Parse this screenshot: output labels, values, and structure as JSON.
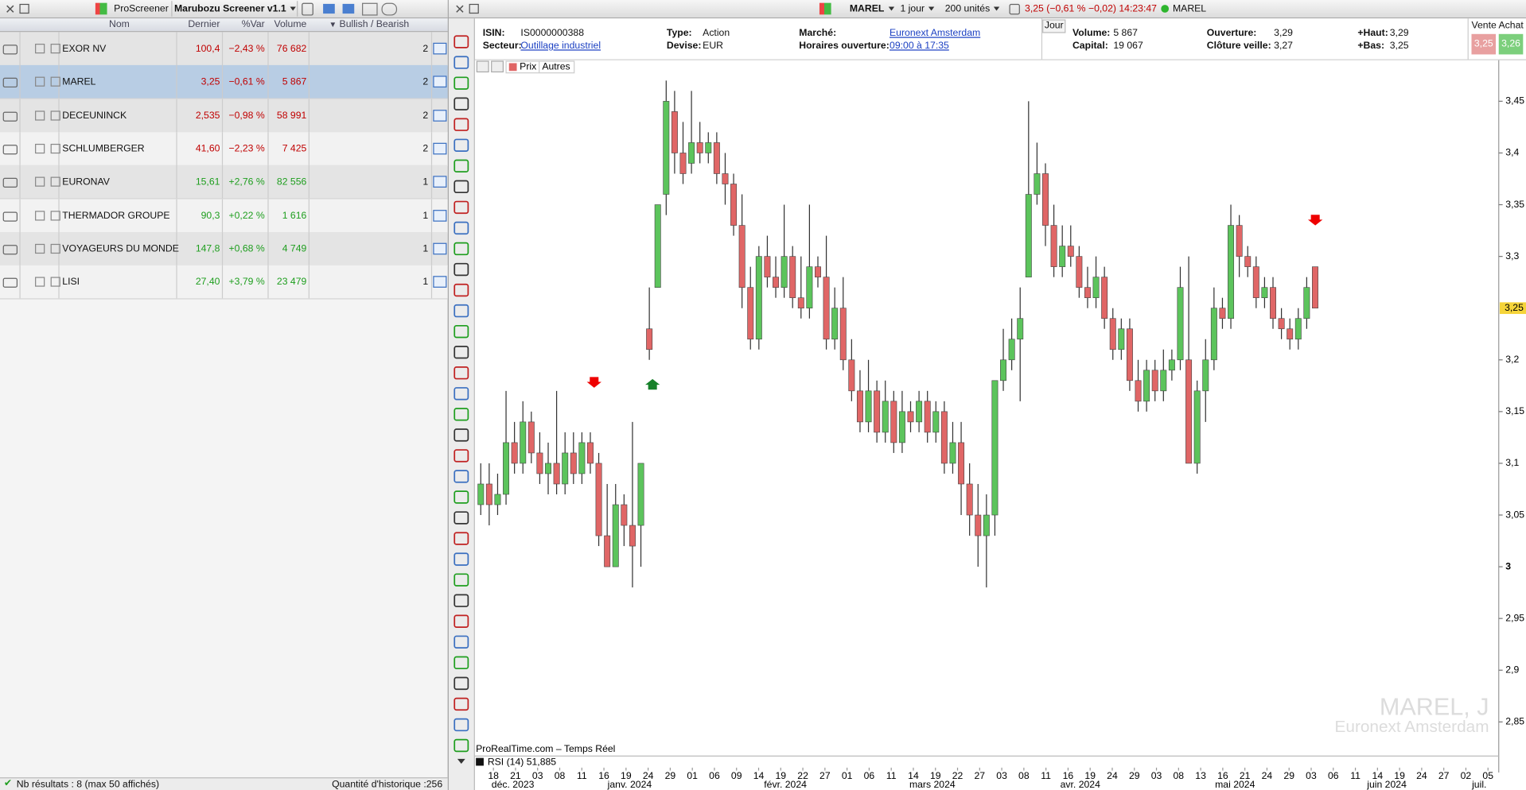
{
  "screener": {
    "app": "ProScreener",
    "name": "Marubozu Screener v1.1",
    "columns": [
      "Nom",
      "Dernier",
      "%Var",
      "Volume",
      "Bullish / Bearish"
    ],
    "rows": [
      {
        "cells": [
          "EXOR NV",
          "100,4",
          "−2,43 %",
          "76 682",
          "2"
        ],
        "color": "#c00000"
      },
      {
        "cells": [
          "MAREL",
          "3,25",
          "−0,61 %",
          "5 867",
          "2"
        ],
        "color": "#c00000"
      },
      {
        "cells": [
          "DECEUNINCK",
          "2,535",
          "−0,98 %",
          "58 991",
          "2"
        ],
        "color": "#c00000"
      },
      {
        "cells": [
          "SCHLUMBERGER",
          "41,60",
          "−2,23 %",
          "7 425",
          "2"
        ],
        "color": "#c00000"
      },
      {
        "cells": [
          "EURONAV",
          "15,61",
          "+2,76 %",
          "82 556",
          "1"
        ],
        "color": "#1e9e1e"
      },
      {
        "cells": [
          "THERMADOR GROUPE",
          "90,3",
          "+0,22 %",
          "1 616",
          "1"
        ],
        "color": "#1e9e1e"
      },
      {
        "cells": [
          "VOYAGEURS DU MONDE",
          "147,8",
          "+0,68 %",
          "4 749",
          "1"
        ],
        "color": "#1e9e1e"
      },
      {
        "cells": [
          "LISI",
          "27,40",
          "+3,79 %",
          "23 479",
          "1"
        ],
        "color": "#1e9e1e"
      }
    ],
    "selected_row": 1,
    "footer_results": "Nb résultats : 8 (max 50 affichés)",
    "footer_history": "Quantité d'historique :256"
  },
  "toolbar": {
    "symbol": "MAREL",
    "period": "1 jour",
    "units": "200 unités",
    "quote": "3,25 (−0,61 % −0,02) 14:23:47",
    "quote_symbol": "MAREL"
  },
  "info": {
    "isin_label": "ISIN:",
    "isin": "IS0000000388",
    "sector_label": "Secteur:",
    "sector": "Outillage industriel",
    "type_label": "Type:",
    "type": "Action",
    "currency_label": "Devise:",
    "currency": "EUR",
    "market_label": "Marché:",
    "market": "Euronext Amsterdam",
    "hours_label": "Horaires ouverture:",
    "hours": "09:00 à 17:35",
    "tab": "Jour",
    "volume_label": "Volume:",
    "volume": "5 867",
    "capital_label": "Capital:",
    "capital": "19 067",
    "open_label": "Ouverture:",
    "open": "3,29",
    "prev_close_label": "Clôture veille:",
    "prev_close": "3,27",
    "high_label": "+Haut:",
    "high": "3,29",
    "low_label": "+Bas:",
    "low": "3,25",
    "bidask_label": "Vente Achat",
    "bid": "3,25",
    "ask": "3,26"
  },
  "chart_data": {
    "type": "candlestick",
    "tab_price": "Prix",
    "tab_other": "Autres",
    "watermark_title": "MAREL, J",
    "watermark_subtitle": "Euronext Amsterdam",
    "source": "ProRealTime.com – Temps Réel",
    "indicator": "RSI (14) 51,885",
    "up_color": "#5cc45c",
    "down_color": "#e06666",
    "open": [
      3.06,
      3.08,
      3.06,
      3.07,
      3.12,
      3.1,
      3.14,
      3.11,
      3.09,
      3.1,
      3.08,
      3.11,
      3.09,
      3.12,
      3.1,
      3.03,
      3.0,
      3.06,
      3.04,
      3.04,
      3.23,
      3.27,
      3.36,
      3.44,
      3.4,
      3.39,
      3.41,
      3.4,
      3.41,
      3.38,
      3.37,
      3.33,
      3.27,
      3.22,
      3.3,
      3.28,
      3.27,
      3.3,
      3.26,
      3.25,
      3.29,
      3.28,
      3.22,
      3.25,
      3.2,
      3.17,
      3.14,
      3.17,
      3.13,
      3.16,
      3.12,
      3.15,
      3.14,
      3.16,
      3.13,
      3.15,
      3.1,
      3.12,
      3.08,
      3.05,
      3.03,
      3.05,
      3.18,
      3.2,
      3.22,
      3.28,
      3.36,
      3.38,
      3.33,
      3.29,
      3.31,
      3.3,
      3.27,
      3.26,
      3.28,
      3.24,
      3.21,
      3.23,
      3.18,
      3.16,
      3.19,
      3.17,
      3.19,
      3.2,
      3.2,
      3.1,
      3.17,
      3.2,
      3.25,
      3.24,
      3.33,
      3.3,
      3.29,
      3.26,
      3.27,
      3.24,
      3.23,
      3.22,
      3.24,
      3.29
    ],
    "high": [
      3.1,
      3.1,
      3.09,
      3.17,
      3.14,
      3.16,
      3.15,
      3.13,
      3.12,
      3.17,
      3.13,
      3.13,
      3.13,
      3.13,
      3.11,
      3.08,
      3.08,
      3.07,
      3.14,
      3.1,
      3.27,
      3.35,
      3.47,
      3.46,
      3.43,
      3.46,
      3.43,
      3.42,
      3.42,
      3.4,
      3.38,
      3.36,
      3.29,
      3.31,
      3.32,
      3.3,
      3.35,
      3.31,
      3.3,
      3.35,
      3.3,
      3.32,
      3.27,
      3.28,
      3.22,
      3.19,
      3.2,
      3.18,
      3.18,
      3.17,
      3.17,
      3.16,
      3.17,
      3.17,
      3.16,
      3.16,
      3.14,
      3.14,
      3.1,
      3.08,
      3.07,
      3.18,
      3.23,
      3.24,
      3.27,
      3.45,
      3.41,
      3.39,
      3.35,
      3.33,
      3.33,
      3.31,
      3.29,
      3.3,
      3.29,
      3.25,
      3.24,
      3.24,
      3.2,
      3.2,
      3.2,
      3.21,
      3.21,
      3.29,
      3.3,
      3.18,
      3.22,
      3.27,
      3.26,
      3.35,
      3.34,
      3.31,
      3.3,
      3.28,
      3.28,
      3.25,
      3.24,
      3.25,
      3.28,
      3.29
    ],
    "low": [
      3.05,
      3.04,
      3.05,
      3.06,
      3.09,
      3.09,
      3.1,
      3.08,
      3.07,
      3.07,
      3.07,
      3.08,
      3.08,
      3.09,
      3.02,
      3.0,
      3.0,
      3.02,
      2.98,
      3.0,
      3.2,
      3.27,
      3.34,
      3.38,
      3.37,
      3.38,
      3.39,
      3.39,
      3.37,
      3.35,
      3.32,
      3.25,
      3.21,
      3.21,
      3.27,
      3.26,
      3.26,
      3.25,
      3.24,
      3.24,
      3.27,
      3.21,
      3.21,
      3.19,
      3.16,
      3.13,
      3.13,
      3.12,
      3.12,
      3.11,
      3.11,
      3.13,
      3.13,
      3.12,
      3.12,
      3.09,
      3.09,
      3.05,
      3.03,
      3.0,
      2.98,
      3.03,
      3.17,
      3.19,
      3.16,
      3.28,
      3.35,
      3.31,
      3.28,
      3.28,
      3.29,
      3.26,
      3.25,
      3.25,
      3.23,
      3.2,
      3.2,
      3.17,
      3.15,
      3.15,
      3.16,
      3.16,
      3.18,
      3.19,
      3.1,
      3.09,
      3.14,
      3.19,
      3.23,
      3.23,
      3.28,
      3.28,
      3.25,
      3.25,
      3.23,
      3.22,
      3.21,
      3.21,
      3.23,
      3.25
    ],
    "close": [
      3.08,
      3.06,
      3.07,
      3.12,
      3.1,
      3.14,
      3.11,
      3.09,
      3.1,
      3.08,
      3.11,
      3.09,
      3.12,
      3.1,
      3.03,
      3.0,
      3.06,
      3.04,
      3.02,
      3.1,
      3.21,
      3.35,
      3.45,
      3.4,
      3.38,
      3.41,
      3.4,
      3.41,
      3.38,
      3.37,
      3.33,
      3.27,
      3.22,
      3.3,
      3.28,
      3.27,
      3.3,
      3.26,
      3.25,
      3.29,
      3.28,
      3.22,
      3.25,
      3.2,
      3.17,
      3.14,
      3.17,
      3.13,
      3.16,
      3.12,
      3.15,
      3.14,
      3.16,
      3.13,
      3.15,
      3.1,
      3.12,
      3.08,
      3.05,
      3.03,
      3.05,
      3.18,
      3.2,
      3.22,
      3.24,
      3.36,
      3.38,
      3.33,
      3.29,
      3.31,
      3.3,
      3.27,
      3.26,
      3.28,
      3.24,
      3.21,
      3.23,
      3.18,
      3.16,
      3.19,
      3.17,
      3.19,
      3.2,
      3.27,
      3.1,
      3.17,
      3.2,
      3.25,
      3.24,
      3.33,
      3.3,
      3.29,
      3.26,
      3.27,
      3.24,
      3.23,
      3.22,
      3.24,
      3.27,
      3.25
    ],
    "ylim": [
      2.818,
      3.484
    ],
    "yticks": [
      {
        "value": 3.45,
        "label": "3,45"
      },
      {
        "value": 3.4,
        "label": "3,4"
      },
      {
        "value": 3.35,
        "label": "3,35"
      },
      {
        "value": 3.3,
        "label": "3,3"
      },
      {
        "value": 3.2,
        "label": "3,2"
      },
      {
        "value": 3.15,
        "label": "3,15"
      },
      {
        "value": 3.1,
        "label": "3,1"
      },
      {
        "value": 3.05,
        "label": "3,05"
      },
      3,
      {
        "value": 2.95,
        "label": "2,95"
      },
      {
        "value": 2.9,
        "label": "2,9"
      },
      {
        "value": 2.85,
        "label": "2,85"
      }
    ],
    "last_price": {
      "value": 3.25,
      "label": "3,25"
    },
    "x_day_labels": [
      "18",
      "21",
      "03",
      "08",
      "11",
      "16",
      "19",
      "24",
      "29",
      "01",
      "06",
      "09",
      "14",
      "19",
      "22",
      "27",
      "01",
      "06",
      "11",
      "14",
      "19",
      "22",
      "27",
      "03",
      "08",
      "11",
      "16",
      "19",
      "24",
      "29",
      "03",
      "08",
      "13",
      "16",
      "21",
      "24",
      "29",
      "03",
      "06",
      "11",
      "14",
      "19",
      "24",
      "27",
      "02",
      "05"
    ],
    "x_month_labels": [
      "déc. 2023",
      "janv. 2024",
      "févr. 2024",
      "mars 2024",
      "avr. 2024",
      "mai 2024",
      "juin 2024",
      "juil."
    ]
  }
}
